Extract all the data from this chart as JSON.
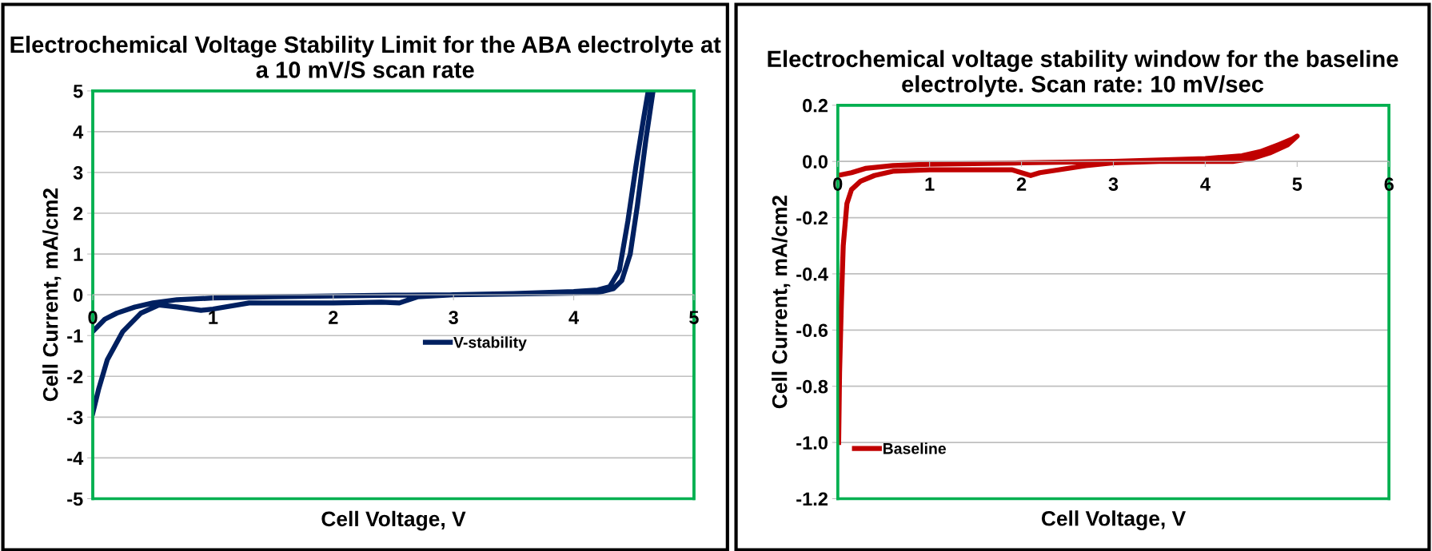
{
  "chart_data": [
    {
      "type": "line",
      "title": "Electrochemical Voltage Stability Limit for the ABA electrolyte at a 10 mV/S scan rate",
      "xlabel": "Cell Voltage, V",
      "ylabel": "Cell Current, mA/cm2",
      "series": [
        {
          "name": "V-stability",
          "color": "#002060",
          "x": [
            0,
            0.1,
            0.2,
            0.35,
            0.5,
            0.7,
            1.0,
            1.5,
            2.0,
            2.5,
            3.0,
            3.5,
            4.0,
            4.2,
            4.3,
            4.38,
            4.45,
            4.52,
            4.58,
            4.62,
            4.66,
            4.6,
            4.53,
            4.47,
            4.4,
            4.33,
            4.2,
            3.5,
            3.0,
            2.7,
            2.55,
            2.4,
            2.0,
            1.5,
            1.3,
            1.0,
            0.9,
            0.7,
            0.55,
            0.4,
            0.25,
            0.12,
            0.05,
            0
          ],
          "values": [
            -0.9,
            -0.6,
            -0.45,
            -0.3,
            -0.2,
            -0.12,
            -0.08,
            -0.05,
            -0.03,
            -0.01,
            0.0,
            0.03,
            0.08,
            0.12,
            0.2,
            0.6,
            1.8,
            3.2,
            4.3,
            5.0,
            5.0,
            3.8,
            2.2,
            1.0,
            0.35,
            0.15,
            0.05,
            0.02,
            0.0,
            -0.05,
            -0.2,
            -0.18,
            -0.2,
            -0.2,
            -0.2,
            -0.35,
            -0.38,
            -0.3,
            -0.25,
            -0.45,
            -0.9,
            -1.6,
            -2.3,
            -2.9
          ]
        }
      ],
      "xlim": [
        0,
        5
      ],
      "ylim": [
        -5,
        5
      ],
      "xticks": [
        0,
        1,
        2,
        3,
        4,
        5
      ],
      "yticks": [
        -5,
        -4,
        -3,
        -2,
        -1,
        0,
        1,
        2,
        3,
        4,
        5
      ],
      "grid": "y",
      "legend": "center",
      "marker": "none",
      "line_style": "solid"
    },
    {
      "type": "line",
      "title": "Electrochemical voltage stability window for the baseline electrolyte. Scan rate: 10 mV/sec",
      "xlabel": "Cell Voltage, V",
      "ylabel": "Cell Current, mA/cm2",
      "series": [
        {
          "name": "Baseline",
          "color": "#c00000",
          "x": [
            0,
            0.15,
            0.3,
            0.6,
            1.0,
            2.0,
            3.0,
            4.0,
            4.4,
            4.6,
            4.8,
            4.95,
            5.0,
            4.9,
            4.7,
            4.5,
            4.3,
            3.5,
            3.0,
            2.7,
            2.4,
            2.2,
            2.1,
            1.9,
            1.5,
            1.0,
            0.6,
            0.4,
            0.25,
            0.15,
            0.1,
            0.06,
            0.04,
            0.02,
            0.01
          ],
          "values": [
            -0.05,
            -0.04,
            -0.025,
            -0.015,
            -0.01,
            -0.005,
            0.0,
            0.01,
            0.02,
            0.035,
            0.06,
            0.08,
            0.09,
            0.06,
            0.03,
            0.01,
            0.0,
            0.0,
            -0.005,
            -0.015,
            -0.03,
            -0.04,
            -0.05,
            -0.03,
            -0.03,
            -0.03,
            -0.035,
            -0.05,
            -0.07,
            -0.1,
            -0.15,
            -0.3,
            -0.5,
            -0.75,
            -1.0
          ]
        }
      ],
      "xlim": [
        0,
        6
      ],
      "ylim": [
        -1.2,
        0.2
      ],
      "xticks": [
        0,
        1,
        2,
        3,
        4,
        5,
        6
      ],
      "yticks": [
        {
          "value": -1.2,
          "label": "-1.2"
        },
        {
          "value": -1.0,
          "label": "-1.0"
        },
        {
          "value": -0.8,
          "label": "-0.8"
        },
        {
          "value": -0.6,
          "label": "-0.6"
        },
        {
          "value": -0.4,
          "label": "-0.4"
        },
        {
          "value": -0.2,
          "label": "-0.2"
        },
        {
          "value": 0.0,
          "label": "0.0"
        },
        {
          "value": 0.2,
          "label": "0.2"
        }
      ],
      "grid": "y",
      "legend": "bottom left",
      "marker": "none",
      "line_style": "solid"
    }
  ]
}
